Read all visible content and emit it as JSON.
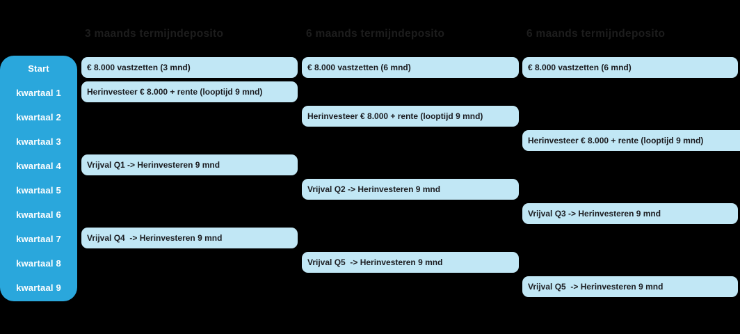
{
  "palette": {
    "background": "#000000",
    "sidebar_fill": "#2AA7DC",
    "sidebar_text": "#FFFFFF",
    "box_fill": "#C1E7F5",
    "box_text": "#1B1C20",
    "header_text": "#1D1D1D"
  },
  "sidebar": {
    "rows": [
      "Start",
      "kwartaal 1",
      "kwartaal 2",
      "kwartaal 3",
      "kwartaal 4",
      "kwartaal 5",
      "kwartaal 6",
      "kwartaal 7",
      "kwartaal 8",
      "kwartaal 9"
    ]
  },
  "columns": [
    {
      "header": "3 maands termijndeposito",
      "boxes": [
        {
          "row": 0,
          "text": "€ 8.000 vastzetten (3 mnd)"
        },
        {
          "row": 1,
          "text": "Herinvesteer € 8.000 + rente (looptijd 9 mnd)"
        },
        {
          "row": 4,
          "text": "Vrijval Q1 -> Herinvesteren 9 mnd"
        },
        {
          "row": 7,
          "text": "Vrijval Q4  -> Herinvesteren 9 mnd"
        }
      ]
    },
    {
      "header": "6 maands termijndeposito",
      "boxes": [
        {
          "row": 0,
          "text": "€ 8.000 vastzetten (6 mnd)"
        },
        {
          "row": 2,
          "text": "Herinvesteer € 8.000 + rente (looptijd 9 mnd)"
        },
        {
          "row": 5,
          "text": "Vrijval Q2 -> Herinvesteren 9 mnd"
        },
        {
          "row": 8,
          "text": "Vrijval Q5  -> Herinvesteren 9 mnd"
        }
      ]
    },
    {
      "header": "6 maands termijndeposito",
      "boxes": [
        {
          "row": 0,
          "text": "€ 8.000 vastzetten (6 mnd)"
        },
        {
          "row": 3,
          "text": "Herinvesteer € 8.000 + rente (looptijd 9 mnd)",
          "extends_beyond_edge": true
        },
        {
          "row": 6,
          "text": "Vrijval Q3 -> Herinvesteren 9 mnd"
        },
        {
          "row": 9,
          "text": "Vrijval Q5  -> Herinvesteren 9 mnd"
        }
      ]
    }
  ]
}
